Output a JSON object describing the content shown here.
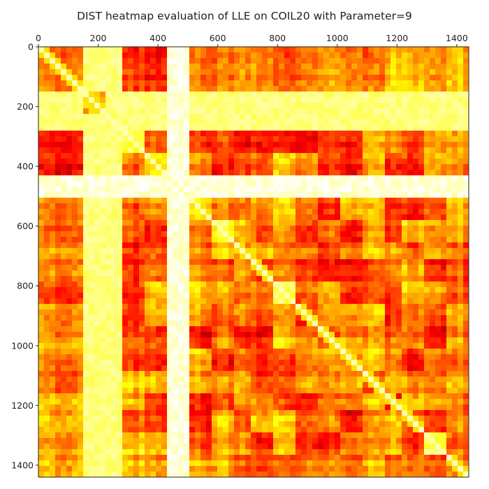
{
  "chart_data": {
    "type": "heatmap",
    "title": "DIST heatmap evaluation of LLE on COIL20 with Parameter=9",
    "xlabel": "",
    "ylabel": "",
    "colormap": "hot",
    "n": 1440,
    "xlim": [
      0,
      1440
    ],
    "ylim": [
      1440,
      0
    ],
    "x_ticks": [
      0,
      200,
      400,
      600,
      800,
      1000,
      1200,
      1400
    ],
    "y_ticks": [
      0,
      200,
      400,
      600,
      800,
      1000,
      1200,
      1400
    ],
    "x_tick_position": "top",
    "blocks": [
      {
        "start": 0,
        "end": 144
      },
      {
        "start": 144,
        "end": 216
      },
      {
        "start": 216,
        "end": 288
      },
      {
        "start": 288,
        "end": 360
      },
      {
        "start": 360,
        "end": 432
      },
      {
        "start": 432,
        "end": 504
      },
      {
        "start": 504,
        "end": 576
      },
      {
        "start": 576,
        "end": 648
      },
      {
        "start": 648,
        "end": 720
      },
      {
        "start": 720,
        "end": 792
      },
      {
        "start": 792,
        "end": 864
      },
      {
        "start": 864,
        "end": 936
      },
      {
        "start": 936,
        "end": 1008
      },
      {
        "start": 1008,
        "end": 1080
      },
      {
        "start": 1080,
        "end": 1152
      },
      {
        "start": 1152,
        "end": 1224
      },
      {
        "start": 1224,
        "end": 1296
      },
      {
        "start": 1296,
        "end": 1368
      },
      {
        "start": 1368,
        "end": 1440
      }
    ],
    "bright_bands": [
      {
        "start": 144,
        "end": 288,
        "level": 0.88
      },
      {
        "start": 432,
        "end": 504,
        "level": 0.97
      }
    ],
    "block_self_similarity": [
      0.55,
      0.75,
      0.7,
      0.8,
      0.72,
      0.95,
      0.7,
      0.78,
      0.55,
      0.4,
      0.82,
      0.45,
      0.5,
      0.6,
      0.45,
      0.4,
      0.5,
      0.85,
      0.55
    ],
    "base_level": 0.38,
    "colors": {
      "dark": "#5a0000",
      "red": "#d21000",
      "orange": "#ff7a00",
      "yellow": "#ffff30",
      "white": "#ffffe6"
    }
  }
}
